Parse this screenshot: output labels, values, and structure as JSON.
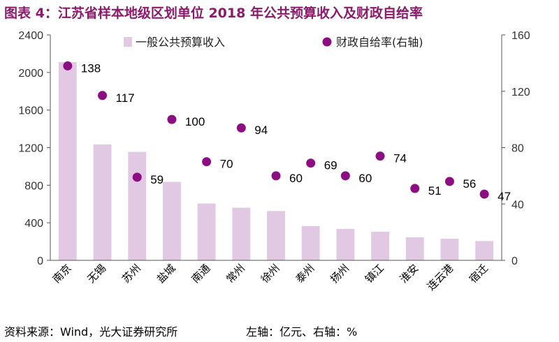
{
  "header": {
    "title": "图表 4：江苏省样本地级区划单位 2018 年公共预算收入及财政自给率"
  },
  "footer": {
    "source": "资料来源：Wind，光大证券研究所",
    "axis_note": "左轴：亿元、右轴：%"
  },
  "colors": {
    "bar": "#e2c9e3",
    "point": "#8c0e82",
    "title": "#8b1a6b",
    "axis": "#555555"
  },
  "chart_data": {
    "type": "bar",
    "title": "",
    "categories": [
      "南京",
      "无锡",
      "苏州",
      "盐城",
      "南通",
      "常州",
      "徐州",
      "泰州",
      "扬州",
      "镇江",
      "淮安",
      "连云港",
      "宿迁"
    ],
    "series": [
      {
        "name": "一般公共预算收入",
        "type": "bar",
        "axis": "left",
        "values": [
          2110,
          1235,
          1155,
          835,
          605,
          560,
          525,
          365,
          335,
          305,
          245,
          230,
          205
        ]
      },
      {
        "name": "财政自给率(右轴)",
        "type": "scatter",
        "axis": "right",
        "values": [
          138,
          117,
          59,
          100,
          70,
          94,
          60,
          69,
          60,
          74,
          51,
          56,
          47
        ],
        "labels": [
          "138",
          "117",
          "59",
          "100",
          "70",
          "94",
          "60",
          "69",
          "60",
          "74",
          "51",
          "56",
          "47"
        ]
      }
    ],
    "y_left": {
      "min": 0,
      "max": 2400,
      "ticks": [
        "0",
        "400",
        "800",
        "1200",
        "1600",
        "2000",
        "2400"
      ]
    },
    "y_right": {
      "min": 0,
      "max": 160,
      "ticks": [
        "0",
        "40",
        "80",
        "120",
        "160"
      ]
    },
    "grid": false,
    "legend_position": "top"
  }
}
